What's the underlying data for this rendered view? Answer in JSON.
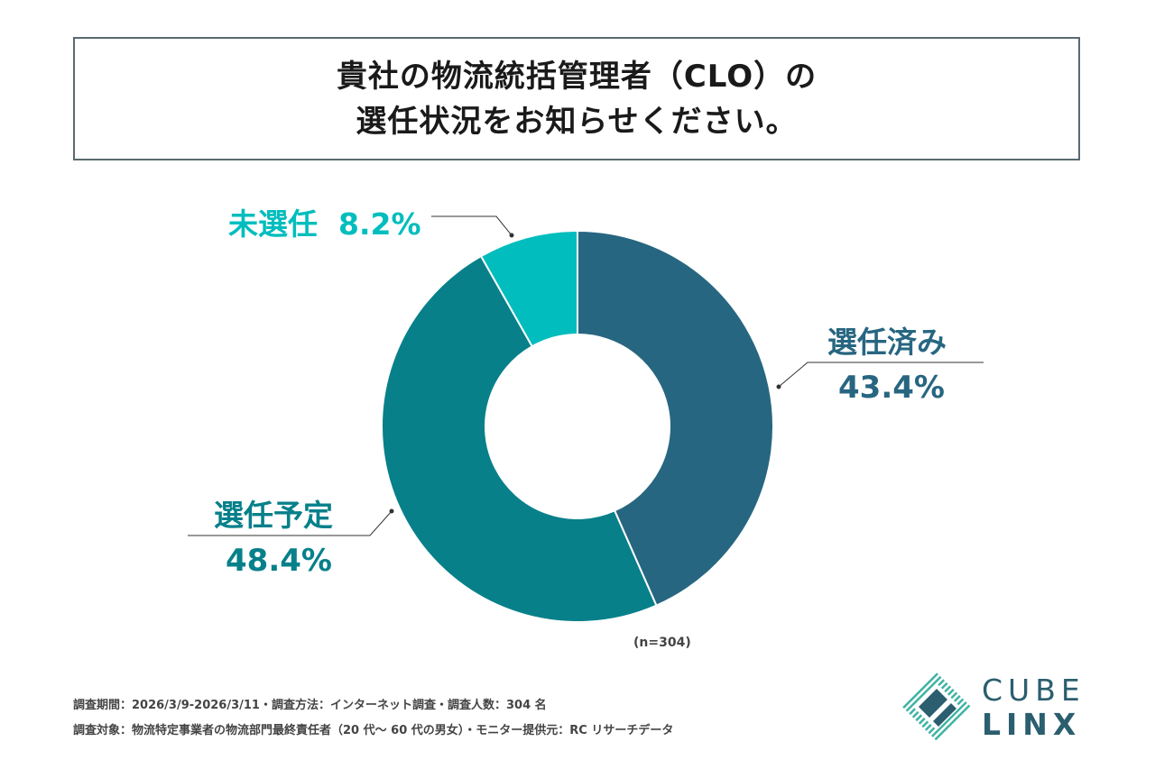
{
  "title": {
    "line1": "貴社の物流統括管理者（CLO）の",
    "line2": "選任状況をお知らせください。"
  },
  "chart_data": {
    "type": "pie",
    "subtype": "donut",
    "title": "貴社の物流統括管理者（CLO）の選任状況をお知らせください。",
    "categories": [
      "選任済み",
      "選任予定",
      "未選任"
    ],
    "values": [
      43.4,
      48.4,
      8.2
    ],
    "value_labels": [
      "43.4%",
      "48.4%",
      "8.2%"
    ],
    "colors": [
      "#276681",
      "#07808a",
      "#02bdbd"
    ],
    "start": "top, clockwise",
    "sample_size": "(n=304)"
  },
  "labels": {
    "unselected": {
      "name": "未選任",
      "pct": "8.2%",
      "color": "#02bdbd"
    },
    "selected": {
      "name": "選任済み",
      "pct": "43.4%",
      "color": "#276681"
    },
    "planned": {
      "name": "選任予定",
      "pct": "48.4%",
      "color": "#07808a"
    }
  },
  "footnotes": {
    "line1": "調査期間：2026/3/9-2026/3/11・調査方法：インターネット調査・調査人数：304 名",
    "line2": "調査対象：物流特定事業者の物流部門最終責任者（20 代～ 60 代の男女）・モニター提供元：RC リサーチデータ"
  },
  "logo": {
    "word1": "CUBE",
    "word2": "LINX",
    "color": "#2b5e6e",
    "accent": "#3fb3a4"
  }
}
